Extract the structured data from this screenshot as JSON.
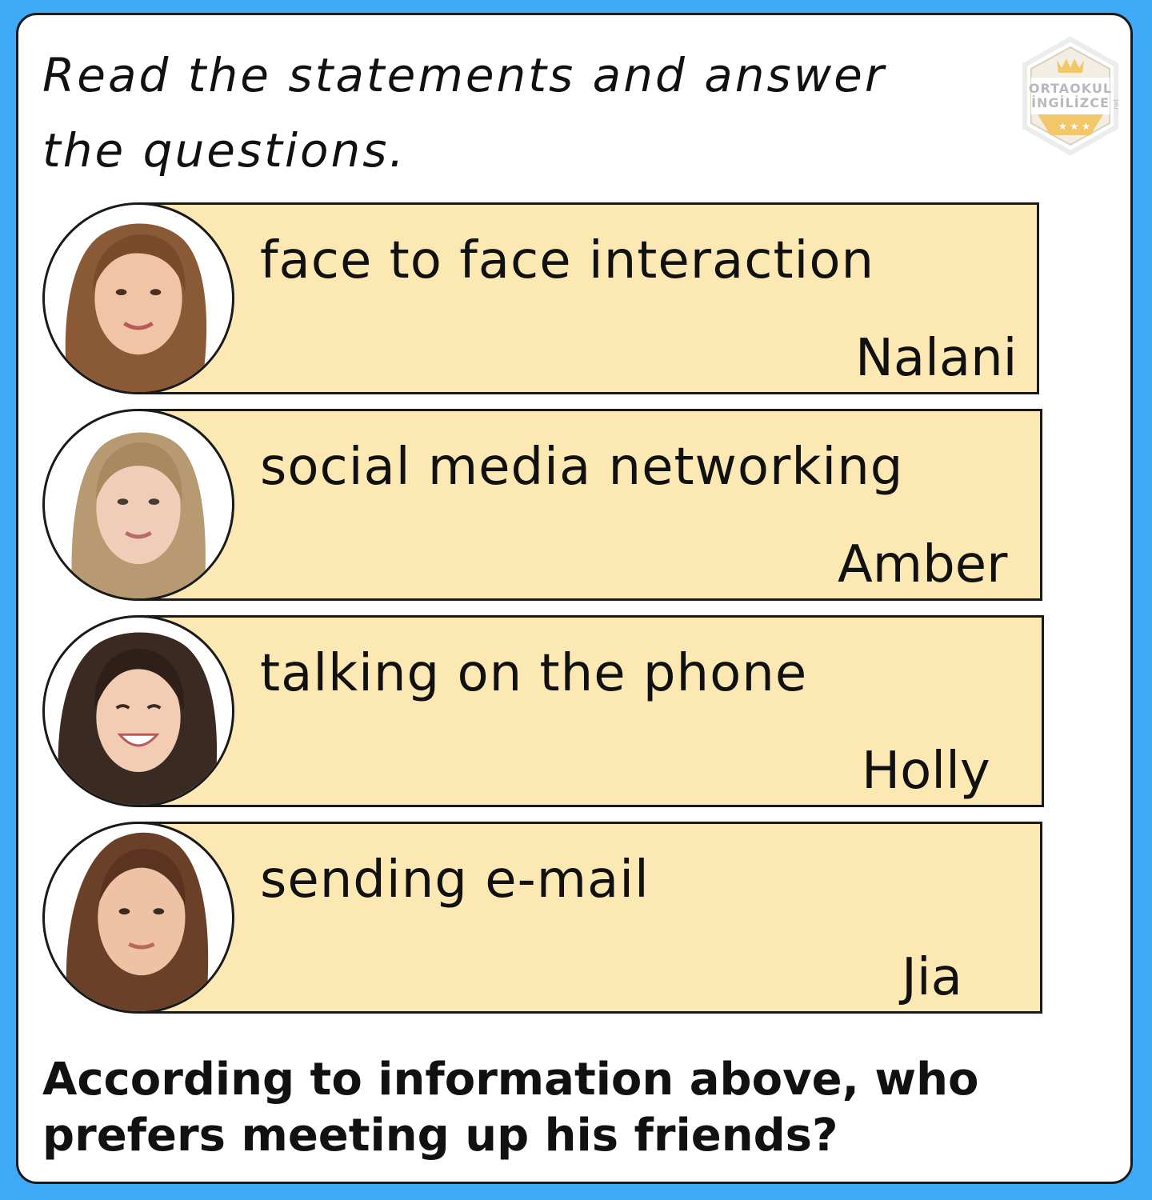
{
  "instruction": "Read the statements and answer\nthe questions.",
  "logo": {
    "line1": "ORTAOKUL",
    "line2": "İNGİLİZCE",
    "suffix": ".net"
  },
  "statements": [
    {
      "text": "face to face interaction",
      "name": "Nalani"
    },
    {
      "text": "social media networking",
      "name": "Amber"
    },
    {
      "text": "talking on the phone",
      "name": "Holly"
    },
    {
      "text": "sending e-mail",
      "name": "Jia"
    }
  ],
  "question": "According to information above, who\nprefers meeting up his friends?",
  "colors": {
    "background": "#3eaaf8",
    "card": "#ffffff",
    "statement_box": "#fbe8b3",
    "border": "#1a1a1a"
  }
}
